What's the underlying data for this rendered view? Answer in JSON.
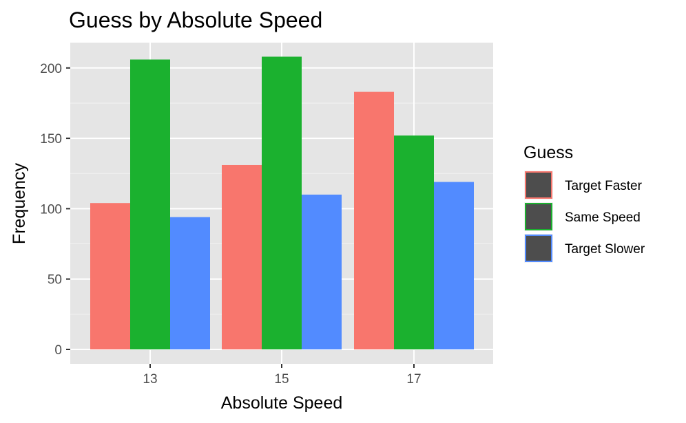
{
  "chart_data": {
    "type": "bar",
    "title": "Guess by Absolute Speed",
    "xlabel": "Absolute Speed",
    "ylabel": "Frequency",
    "categories": [
      "13",
      "15",
      "17"
    ],
    "series": [
      {
        "name": "Target Faster",
        "color": "#F8766D",
        "values": [
          104,
          131,
          183
        ]
      },
      {
        "name": "Same Speed",
        "color": "#1BB12F",
        "values": [
          206,
          208,
          152
        ]
      },
      {
        "name": "Target Slower",
        "color": "#528BFF",
        "values": [
          94,
          110,
          119
        ]
      }
    ],
    "yticks": [
      "0",
      "50",
      "100",
      "150",
      "200"
    ],
    "ylim": [
      0,
      220
    ],
    "grid": true,
    "legend": {
      "title": "Guess",
      "position": "right"
    },
    "panel_background": "#E5E5E5"
  }
}
